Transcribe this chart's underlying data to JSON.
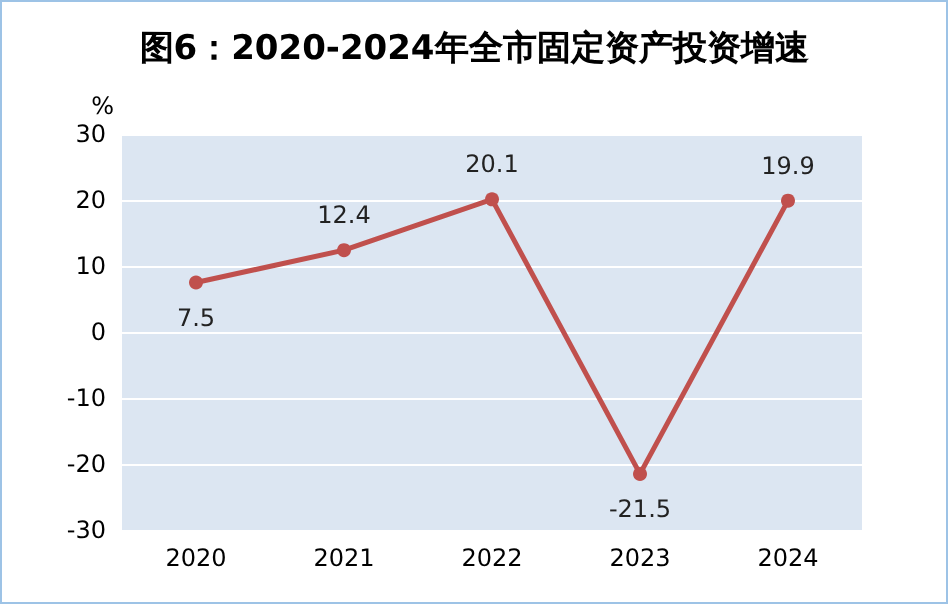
{
  "chart_data": {
    "type": "line",
    "title": "图6：2020-2024年全市固定资产投资增速",
    "ylabel": "%",
    "categories": [
      "2020",
      "2021",
      "2022",
      "2023",
      "2024"
    ],
    "series": [
      {
        "color": "#c0504d",
        "values": [
          7.5,
          12.4,
          20.1,
          -21.5,
          19.9
        ]
      }
    ],
    "ylim": [
      -30,
      30
    ],
    "yticks": [
      -30,
      -20,
      -10,
      0,
      10,
      20,
      30
    ],
    "grid": "y",
    "marker": "circle",
    "line_style": "solid",
    "data_labels": true
  }
}
